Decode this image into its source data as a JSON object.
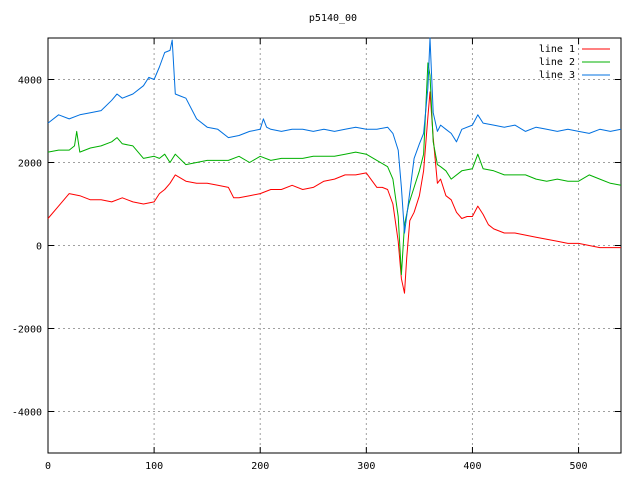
{
  "chart_data": {
    "type": "line",
    "title": "p5140_00",
    "xlabel": "",
    "ylabel": "",
    "xlim": [
      0,
      540
    ],
    "ylim": [
      -5000,
      5000
    ],
    "xticks": [
      0,
      100,
      200,
      300,
      400,
      500
    ],
    "yticks": [
      -4000,
      -2000,
      0,
      2000,
      4000
    ],
    "grid": true,
    "legend_position": "top-right",
    "series": [
      {
        "name": "line 1",
        "color": "#ff0000",
        "x": [
          0,
          10,
          20,
          30,
          40,
          50,
          60,
          70,
          80,
          90,
          100,
          105,
          110,
          115,
          120,
          130,
          140,
          150,
          160,
          170,
          175,
          180,
          190,
          200,
          210,
          220,
          230,
          240,
          250,
          260,
          270,
          280,
          290,
          300,
          310,
          315,
          320,
          325,
          330,
          333,
          336,
          338,
          341,
          345,
          350,
          354,
          358,
          360,
          363,
          367,
          370,
          375,
          380,
          385,
          390,
          395,
          400,
          405,
          410,
          415,
          420,
          430,
          440,
          450,
          460,
          470,
          480,
          490,
          500,
          510,
          520,
          530,
          540
        ],
        "y": [
          650,
          950,
          1250,
          1200,
          1100,
          1100,
          1050,
          1150,
          1050,
          1000,
          1050,
          1250,
          1350,
          1500,
          1700,
          1550,
          1500,
          1500,
          1450,
          1400,
          1150,
          1150,
          1200,
          1250,
          1350,
          1350,
          1450,
          1350,
          1400,
          1550,
          1600,
          1700,
          1700,
          1750,
          1400,
          1400,
          1350,
          1000,
          100,
          -800,
          -1150,
          -300,
          600,
          800,
          1200,
          1800,
          3100,
          3700,
          2600,
          1500,
          1600,
          1200,
          1100,
          800,
          650,
          700,
          700,
          950,
          750,
          500,
          400,
          300,
          300,
          250,
          200,
          150,
          100,
          50,
          50,
          0,
          -50,
          -50,
          -50
        ]
      },
      {
        "name": "line 2",
        "color": "#00b000",
        "x": [
          0,
          10,
          20,
          25,
          27,
          30,
          40,
          50,
          60,
          65,
          70,
          80,
          90,
          100,
          105,
          110,
          115,
          120,
          130,
          140,
          150,
          160,
          170,
          180,
          190,
          200,
          210,
          220,
          230,
          240,
          250,
          260,
          270,
          280,
          290,
          300,
          310,
          320,
          325,
          330,
          333,
          336,
          340,
          345,
          350,
          354,
          358,
          360,
          363,
          367,
          370,
          375,
          380,
          390,
          400,
          405,
          410,
          420,
          430,
          440,
          450,
          460,
          470,
          480,
          490,
          500,
          510,
          520,
          530,
          540
        ],
        "y": [
          2250,
          2300,
          2300,
          2400,
          2750,
          2250,
          2350,
          2400,
          2500,
          2600,
          2450,
          2400,
          2100,
          2150,
          2100,
          2200,
          2000,
          2200,
          1950,
          2000,
          2050,
          2050,
          2050,
          2150,
          2000,
          2150,
          2050,
          2100,
          2100,
          2100,
          2150,
          2150,
          2150,
          2200,
          2250,
          2200,
          2050,
          1900,
          1600,
          700,
          -700,
          500,
          1000,
          1400,
          1800,
          2200,
          4400,
          4100,
          2500,
          1950,
          1900,
          1800,
          1600,
          1800,
          1850,
          2200,
          1850,
          1800,
          1700,
          1700,
          1700,
          1600,
          1550,
          1600,
          1550,
          1550,
          1700,
          1600,
          1500,
          1450
        ]
      },
      {
        "name": "line 3",
        "color": "#0070e0",
        "x": [
          0,
          10,
          20,
          30,
          40,
          50,
          60,
          65,
          70,
          80,
          90,
          95,
          100,
          105,
          110,
          115,
          117,
          120,
          125,
          130,
          140,
          150,
          160,
          170,
          180,
          190,
          200,
          203,
          206,
          210,
          220,
          230,
          240,
          250,
          260,
          270,
          280,
          290,
          300,
          310,
          320,
          325,
          330,
          333,
          336,
          340,
          345,
          350,
          354,
          358,
          360,
          363,
          367,
          370,
          375,
          380,
          385,
          390,
          400,
          405,
          410,
          420,
          430,
          440,
          450,
          460,
          470,
          480,
          490,
          500,
          510,
          520,
          530,
          540
        ],
        "y": [
          2950,
          3150,
          3050,
          3150,
          3200,
          3250,
          3500,
          3650,
          3550,
          3650,
          3850,
          4050,
          4000,
          4300,
          4650,
          4700,
          4950,
          3650,
          3600,
          3550,
          3050,
          2850,
          2800,
          2600,
          2650,
          2750,
          2800,
          3050,
          2850,
          2800,
          2750,
          2800,
          2800,
          2750,
          2800,
          2750,
          2800,
          2850,
          2800,
          2800,
          2850,
          2700,
          2300,
          1400,
          300,
          1100,
          2100,
          2450,
          2700,
          3800,
          5000,
          3200,
          2750,
          2900,
          2800,
          2700,
          2500,
          2800,
          2900,
          3150,
          2950,
          2900,
          2850,
          2900,
          2750,
          2850,
          2800,
          2750,
          2800,
          2750,
          2700,
          2800,
          2750,
          2800
        ]
      }
    ]
  }
}
